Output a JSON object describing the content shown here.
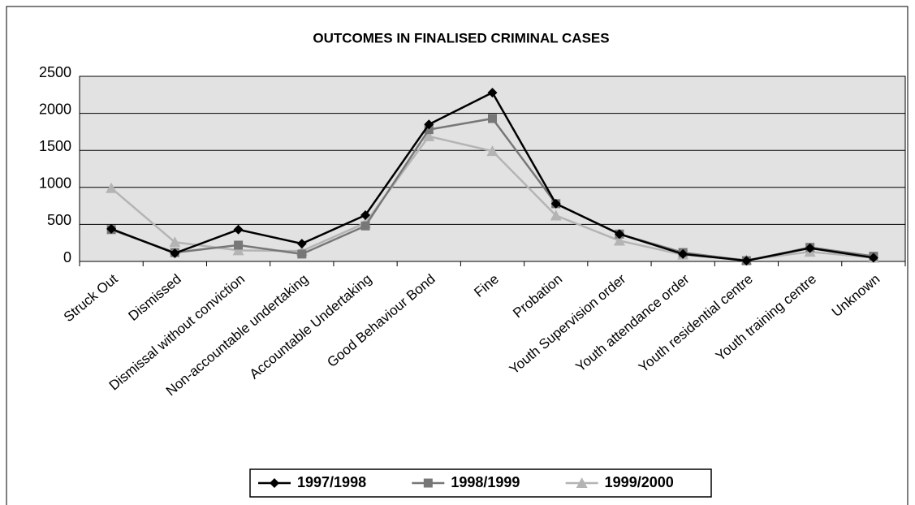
{
  "chart_data": {
    "type": "line",
    "title": "OUTCOMES IN FINALISED CRIMINAL CASES",
    "categories": [
      "Struck Out",
      "Dismissed",
      "Dismissal without conviction",
      "Non-accountable undertaking",
      "Accountable Undertaking",
      "Good Behaviour Bond",
      "Fine",
      "Probation",
      "Youth Supervision order",
      "Youth attendance order",
      "Youth residential centre",
      "Youth training centre",
      "Unknown"
    ],
    "series": [
      {
        "name": "1997/1998",
        "color": "#000000",
        "marker": "diamond",
        "values": [
          440,
          110,
          430,
          240,
          625,
          1850,
          2280,
          780,
          370,
          100,
          10,
          180,
          50
        ]
      },
      {
        "name": "1998/1999",
        "color": "#777777",
        "marker": "square",
        "values": [
          430,
          120,
          220,
          100,
          480,
          1780,
          1930,
          780,
          370,
          120,
          10,
          190,
          70
        ]
      },
      {
        "name": "1999/2000",
        "color": "#b4b4b4",
        "marker": "triangle",
        "values": [
          990,
          260,
          150,
          140,
          520,
          1690,
          1490,
          620,
          280,
          90,
          20,
          130,
          50
        ]
      }
    ],
    "ylim": [
      0,
      2500
    ],
    "yticks": [
      0,
      500,
      1000,
      1500,
      2000,
      2500
    ],
    "grid": true,
    "legend": "bottom"
  }
}
